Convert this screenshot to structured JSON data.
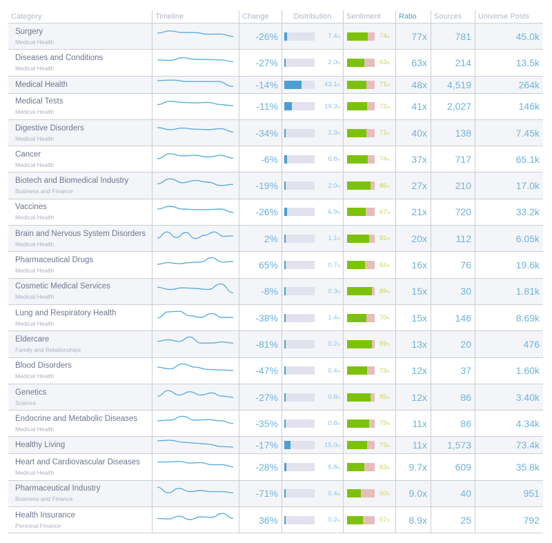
{
  "columns": [
    {
      "key": "category",
      "label": "Category"
    },
    {
      "key": "timeline",
      "label": "Timeline"
    },
    {
      "key": "change",
      "label": "Change"
    },
    {
      "key": "distribution",
      "label": "Distribution"
    },
    {
      "key": "sentiment",
      "label": "Sentiment"
    },
    {
      "key": "ratio",
      "label": "Ratio",
      "sorted": true
    },
    {
      "key": "sources",
      "label": "Sources"
    },
    {
      "key": "universe_posts",
      "label": "Universe Posts"
    }
  ],
  "colors": {
    "accent": "#4a9fd3",
    "value_text": "#6db3e0",
    "sentiment_positive": "#7dc20a",
    "sentiment_negative": "#e6bdbb",
    "distribution_track": "#e1e2ee"
  },
  "rows": [
    {
      "name": "Surgery",
      "parent": "Medical Health",
      "change": "-26%",
      "distribution": "7.4",
      "sentiment": "74",
      "ratio": "77x",
      "sources": "781",
      "universe_posts": "45.0k",
      "spark": [
        0.5,
        0.7,
        0.55,
        0.55,
        0.4,
        0.42,
        0.2
      ]
    },
    {
      "name": "Diseases and Conditions",
      "parent": "Medical Health",
      "change": "-27%",
      "distribution": "2.0",
      "sentiment": "63",
      "ratio": "63x",
      "sources": "214",
      "universe_posts": "13.5k",
      "spark": [
        0.45,
        0.4,
        0.65,
        0.5,
        0.48,
        0.45,
        0.3
      ]
    },
    {
      "name": "Medical Health",
      "parent": "",
      "change": "-14%",
      "distribution": "43.1",
      "sentiment": "71",
      "ratio": "48x",
      "sources": "4,519",
      "universe_posts": "264k",
      "spark": [
        0.8,
        0.85,
        0.7,
        0.7,
        0.7,
        0.2
      ]
    },
    {
      "name": "Medical Tests",
      "parent": "Medical Health",
      "change": "-11%",
      "distribution": "19.3",
      "sentiment": "72",
      "ratio": "41x",
      "sources": "2,027",
      "universe_posts": "146k",
      "spark": [
        0.4,
        0.7,
        0.6,
        0.55,
        0.6,
        0.4,
        0.3
      ]
    },
    {
      "name": "Digestive Disorders",
      "parent": "Medical Health",
      "change": "-34%",
      "distribution": "1.3",
      "sentiment": "71",
      "ratio": "40x",
      "sources": "138",
      "universe_posts": "7.45k",
      "spark": [
        0.7,
        0.5,
        0.65,
        0.55,
        0.5,
        0.6,
        0.3
      ]
    },
    {
      "name": "Cancer",
      "parent": "Medical Health",
      "change": "-6%",
      "distribution": "6.8",
      "sentiment": "74",
      "ratio": "37x",
      "sources": "717",
      "universe_posts": "65.1k",
      "spark": [
        0.25,
        0.7,
        0.5,
        0.55,
        0.4,
        0.55,
        0.3
      ]
    },
    {
      "name": "Biotech and Biomedical Industry",
      "parent": "Business and Finance",
      "change": "-19%",
      "distribution": "2.0",
      "sentiment": "86",
      "ratio": "27x",
      "sources": "210",
      "universe_posts": "17.0k",
      "spark": [
        0.35,
        0.8,
        0.45,
        0.65,
        0.5,
        0.2,
        0.3
      ]
    },
    {
      "name": "Vaccines",
      "parent": "Medical Health",
      "change": "-26%",
      "distribution": "6.9",
      "sentiment": "67",
      "ratio": "21x",
      "sources": "720",
      "universe_posts": "33.2k",
      "spark": [
        0.5,
        0.75,
        0.5,
        0.45,
        0.45,
        0.5,
        0.2
      ]
    },
    {
      "name": "Brain and Nervous System Disorders",
      "parent": "Medical Health",
      "change": "2%",
      "distribution": "1.1",
      "sentiment": "81",
      "ratio": "20x",
      "sources": "112",
      "universe_posts": "6.05k",
      "spark": [
        0.25,
        0.8,
        0.3,
        0.75,
        0.2,
        0.5,
        0.8,
        0.4,
        0.45
      ]
    },
    {
      "name": "Pharmaceutical Drugs",
      "parent": "Medical Health",
      "change": "65%",
      "distribution": "0.7",
      "sentiment": "64",
      "ratio": "16x",
      "sources": "76",
      "universe_posts": "19.6k",
      "spark": [
        0.25,
        0.4,
        0.3,
        0.4,
        0.45,
        0.85,
        0.45,
        0.5
      ]
    },
    {
      "name": "Cosmetic Medical Services",
      "parent": "Medical Health",
      "change": "-8%",
      "distribution": "0.3",
      "sentiment": "89",
      "ratio": "15x",
      "sources": "30",
      "universe_posts": "1.81k",
      "spark": [
        0.6,
        0.4,
        0.55,
        0.5,
        0.4,
        0.9,
        0.1
      ]
    },
    {
      "name": "Lung and Respiratory Health",
      "parent": "Medical Health",
      "change": "-38%",
      "distribution": "1.4",
      "sentiment": "70",
      "ratio": "15x",
      "sources": "146",
      "universe_posts": "8.69k",
      "spark": [
        0.2,
        0.75,
        0.8,
        0.4,
        0.25,
        0.6,
        0.25,
        0.25
      ]
    },
    {
      "name": "Eldercare",
      "parent": "Family and Relationships",
      "change": "-81%",
      "distribution": "0.2",
      "sentiment": "89",
      "ratio": "13x",
      "sources": "20",
      "universe_posts": "476",
      "spark": [
        0.45,
        0.6,
        0.45,
        0.85,
        0.3,
        0.3,
        0.4,
        0.3
      ]
    },
    {
      "name": "Blood Disorders",
      "parent": "Medical Health",
      "change": "-47%",
      "distribution": "0.4",
      "sentiment": "73",
      "ratio": "12x",
      "sources": "37",
      "universe_posts": "1.60k",
      "spark": [
        0.55,
        0.4,
        0.85,
        0.55,
        0.35,
        0.3,
        0.25
      ]
    },
    {
      "name": "Genetics",
      "parent": "Science",
      "change": "-27%",
      "distribution": "0.8",
      "sentiment": "85",
      "ratio": "12x",
      "sources": "86",
      "universe_posts": "3.40k",
      "spark": [
        0.3,
        0.8,
        0.4,
        0.7,
        0.4,
        0.6,
        0.3,
        0.2
      ]
    },
    {
      "name": "Endocrine and Metabolic Diseases",
      "parent": "Medical Health",
      "change": "-35%",
      "distribution": "0.8",
      "sentiment": "79",
      "ratio": "11x",
      "sources": "86",
      "universe_posts": "4.34k",
      "spark": [
        0.45,
        0.5,
        0.85,
        0.5,
        0.55,
        0.45,
        0.2
      ]
    },
    {
      "name": "Healthy Living",
      "parent": "",
      "change": "-17%",
      "distribution": "15.0",
      "sentiment": "73",
      "ratio": "11x",
      "sources": "1,573",
      "universe_posts": "73.4k",
      "spark": [
        0.8,
        0.85,
        0.65,
        0.55,
        0.45,
        0.2,
        0.15
      ]
    },
    {
      "name": "Heart and Cardiovascular Diseases",
      "parent": "Medical Health",
      "change": "-28%",
      "distribution": "5.8",
      "sentiment": "63",
      "ratio": "9.7x",
      "sources": "609",
      "universe_posts": "35.8k",
      "spark": [
        0.65,
        0.65,
        0.7,
        0.55,
        0.6,
        0.4,
        0.4,
        0.2
      ]
    },
    {
      "name": "Pharmaceutical Industry",
      "parent": "Business and Finance",
      "change": "-71%",
      "distribution": "0.4",
      "sentiment": "50",
      "ratio": "9.0x",
      "sources": "40",
      "universe_posts": "951",
      "spark": [
        0.8,
        0.3,
        0.7,
        0.4,
        0.5,
        0.4,
        0.4,
        0.3
      ]
    },
    {
      "name": "Health Insurance",
      "parent": "Personal Finance",
      "change": "36%",
      "distribution": "0.2",
      "sentiment": "57",
      "ratio": "8.9x",
      "sources": "25",
      "universe_posts": "792",
      "spark": [
        0.35,
        0.3,
        0.55,
        0.25,
        0.5,
        0.45,
        0.8,
        0.35
      ]
    }
  ]
}
